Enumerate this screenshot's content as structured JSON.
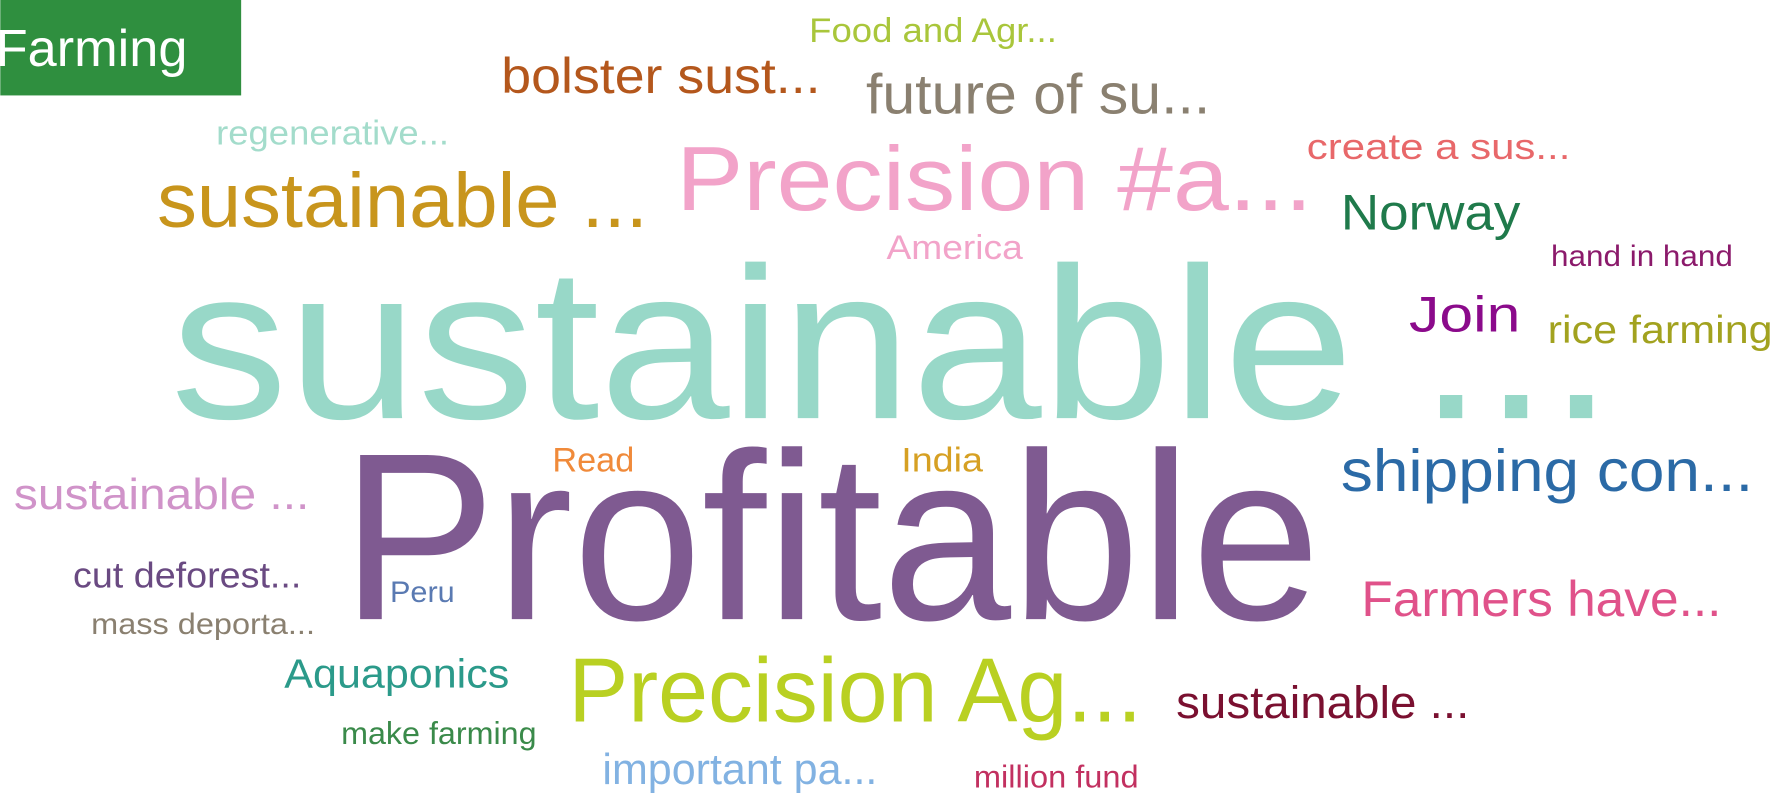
{
  "tag": "Farming",
  "words": [
    "Food and Agr...",
    "bolster sust...",
    "future of su...",
    "regenerative...",
    "create a sus...",
    "sustainable ...",
    "Precision #a...",
    "Norway",
    "America",
    "hand in hand",
    "sustainable ...",
    "Join",
    "rice farming",
    "Read",
    "India",
    "shipping con...",
    "sustainable ...",
    "Profitable",
    "cut deforest...",
    "Peru",
    "Farmers have...",
    "mass deporta...",
    "Aquaponics",
    "Precision Ag...",
    "sustainable ...",
    "make farming",
    "important pa...",
    "million fund"
  ]
}
